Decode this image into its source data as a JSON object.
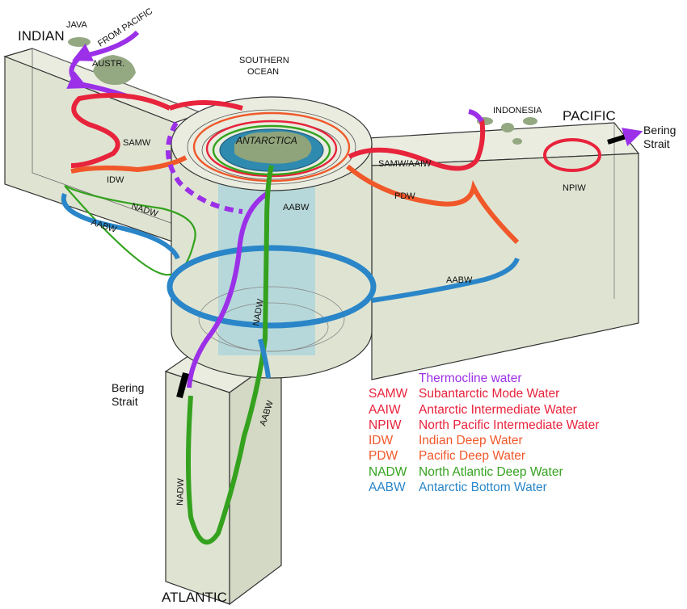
{
  "basins": {
    "indian": "INDIAN",
    "pacific": "PACIFIC",
    "atlantic": "ATLANTIC"
  },
  "places": {
    "java": "JAVA",
    "australia": "AUSTR.",
    "from_pacific": "FROM PACIFIC",
    "southern_ocean_1": "SOUTHERN",
    "southern_ocean_2": "OCEAN",
    "antarctica": "ANTARCTICA",
    "indonesia": "INDONESIA",
    "bering_east_1": "Bering",
    "bering_east_2": "Strait",
    "bering_west_1": "Bering",
    "bering_west_2": "Strait"
  },
  "path_labels": {
    "samw": "SAMW",
    "idw": "IDW",
    "nadw_indian": "NADW",
    "aabw_indian": "AABW",
    "aabw_south": "AABW",
    "samw_aaiw": "SAMW/AAIW",
    "pdw": "PDW",
    "npiw": "NPIW",
    "aabw_pacific": "AABW",
    "nadw_column": "NADW",
    "aabw_atlantic": "AABW",
    "nadw_atlantic": "NADW"
  },
  "legend": [
    {
      "abbr": "",
      "name": "Thermocline water",
      "color": "#9b30e8"
    },
    {
      "abbr": "SAMW",
      "name": "Subantarctic Mode Water",
      "color": "#e8233c"
    },
    {
      "abbr": "AAIW",
      "name": "Antarctic Intermediate Water",
      "color": "#e8233c"
    },
    {
      "abbr": "NPIW",
      "name": "North Pacific Intermediate Water",
      "color": "#e8233c"
    },
    {
      "abbr": "IDW",
      "name": "Indian Deep Water",
      "color": "#f0582a"
    },
    {
      "abbr": "PDW",
      "name": "Pacific Deep Water",
      "color": "#f0582a"
    },
    {
      "abbr": "NADW",
      "name": "North Atlantic Deep Water",
      "color": "#34a21e"
    },
    {
      "abbr": "AABW",
      "name": "Antarctic Bottom Water",
      "color": "#2a86c8"
    }
  ],
  "colors": {
    "thermocline": "#9b30e8",
    "intermediate": "#e8233c",
    "deep": "#f0582a",
    "nadw": "#34a21e",
    "aabw": "#2a86c8",
    "basin_fill": "#dfe4d2",
    "antarctica_fill": "#2f8ab0",
    "land": "#94a882"
  }
}
